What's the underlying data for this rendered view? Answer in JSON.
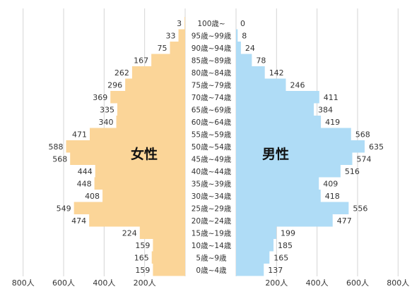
{
  "chart_data": {
    "type": "bar",
    "subtype": "population-pyramid",
    "categories": [
      "100歳~",
      "95歳~99歳",
      "90歳~94歳",
      "85歳~89歳",
      "80歳~84歳",
      "75歳~79歳",
      "70歳~74歳",
      "65歳~69歳",
      "60歳~64歳",
      "55歳~59歳",
      "50歳~54歳",
      "45歳~49歳",
      "40歳~44歳",
      "35歳~39歳",
      "30歳~34歳",
      "25歳~29歳",
      "20歳~24歳",
      "15歳~19歳",
      "10歳~14歳",
      "5歳~9歳",
      "0歳~4歳"
    ],
    "series": [
      {
        "name": "女性",
        "side": "left",
        "color": "#fbd598",
        "values": [
          3,
          33,
          75,
          167,
          262,
          296,
          369,
          335,
          340,
          471,
          588,
          568,
          444,
          448,
          408,
          549,
          474,
          224,
          159,
          165,
          159
        ]
      },
      {
        "name": "男性",
        "side": "right",
        "color": "#afdcf6",
        "values": [
          0,
          8,
          24,
          78,
          142,
          246,
          411,
          384,
          419,
          568,
          635,
          574,
          516,
          409,
          418,
          556,
          477,
          199,
          185,
          165,
          137
        ]
      }
    ],
    "x_ticks_left": [
      "800人",
      "600人",
      "400人",
      "200人"
    ],
    "x_ticks_right": [
      "200人",
      "400人",
      "600人",
      "800人"
    ],
    "xlim": [
      0,
      800
    ],
    "grid": true,
    "title": "",
    "xlabel": "",
    "ylabel": ""
  },
  "labels": {
    "female": "女性",
    "male": "男性"
  }
}
